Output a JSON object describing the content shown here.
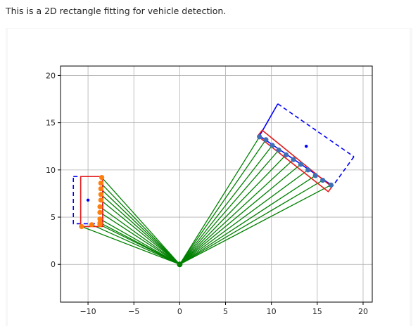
{
  "page": {
    "caption": "This is a 2D rectangle fitting for vehicle detection."
  },
  "chart_data": {
    "type": "scatter",
    "title": "",
    "xlabel": "",
    "ylabel": "",
    "xlim": [
      -13,
      21
    ],
    "ylim": [
      -4,
      21
    ],
    "grid": true,
    "xticks": [
      -10,
      -5,
      0,
      5,
      10,
      15,
      20
    ],
    "yticks": [
      0,
      5,
      10,
      15,
      20
    ],
    "xtick_labels": [
      "−10",
      "−5",
      "0",
      "5",
      "10",
      "15",
      "20"
    ],
    "ytick_labels": [
      "0",
      "5",
      "10",
      "15",
      "20"
    ],
    "colors": {
      "rays": "#008000",
      "origin": "#008000",
      "fit_box": "#e41a1c",
      "bbox_dashed": "#0000ff",
      "center": "#0000ff",
      "left_points": "#ff7f0e",
      "right_points": "#3f6fb5"
    },
    "origin": [
      0,
      0
    ],
    "left_points": [
      [
        -10.7,
        4.0
      ],
      [
        -9.6,
        4.2
      ],
      [
        -8.7,
        4.2
      ],
      [
        -8.7,
        4.4
      ],
      [
        -8.7,
        4.8
      ],
      [
        -8.7,
        5.5
      ],
      [
        -8.7,
        6.1
      ],
      [
        -8.6,
        6.8
      ],
      [
        -8.6,
        7.4
      ],
      [
        -8.6,
        8.0
      ],
      [
        -8.6,
        8.6
      ],
      [
        -8.5,
        9.2
      ]
    ],
    "right_points": [
      [
        8.7,
        13.5
      ],
      [
        9.4,
        13.2
      ],
      [
        10.1,
        12.6
      ],
      [
        10.8,
        12.1
      ],
      [
        11.6,
        11.6
      ],
      [
        12.4,
        11.1
      ],
      [
        13.2,
        10.6
      ],
      [
        14.0,
        10.0
      ],
      [
        14.8,
        9.4
      ],
      [
        15.6,
        8.9
      ],
      [
        16.5,
        8.4
      ]
    ],
    "left_fit_box": [
      [
        -10.8,
        9.3
      ],
      [
        -8.4,
        9.3
      ],
      [
        -8.4,
        4.0
      ],
      [
        -10.8,
        4.0
      ]
    ],
    "left_bbox_dashed": [
      [
        -11.6,
        9.3
      ],
      [
        -8.4,
        9.3
      ],
      [
        -8.4,
        4.3
      ],
      [
        -11.6,
        4.3
      ]
    ],
    "left_center": [
      -10.0,
      6.8
    ],
    "right_fit_box": [
      [
        8.5,
        13.6
      ],
      [
        9.0,
        14.2
      ],
      [
        16.6,
        8.2
      ],
      [
        16.2,
        7.7
      ]
    ],
    "right_bbox": [
      [
        8.7,
        13.6
      ],
      [
        10.7,
        17.0
      ],
      [
        19.0,
        11.4
      ],
      [
        16.7,
        8.3
      ]
    ],
    "right_center": [
      13.8,
      12.5
    ]
  }
}
